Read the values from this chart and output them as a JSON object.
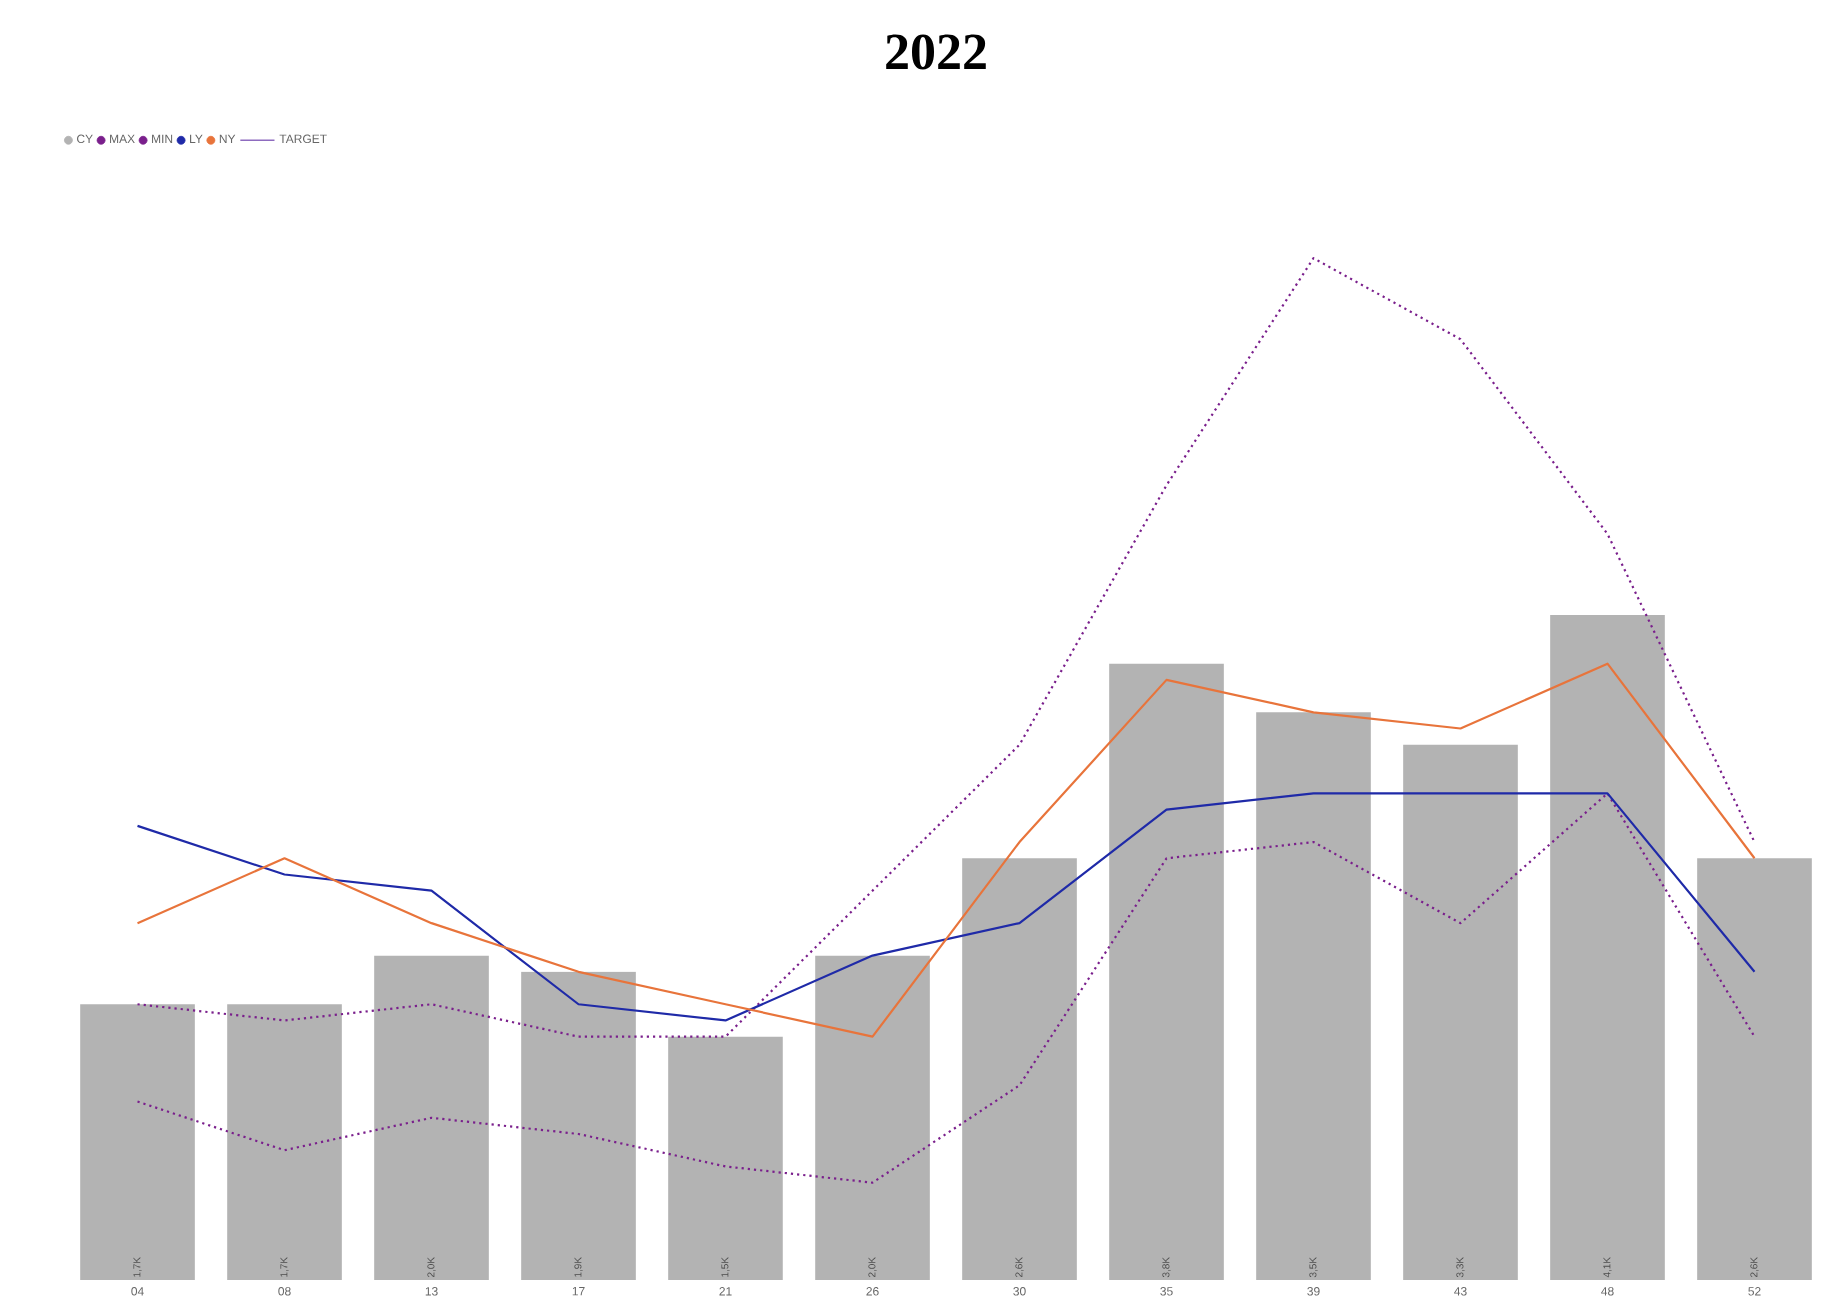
{
  "chart_data": {
    "type": "bar",
    "title": "2022",
    "categories": [
      "04",
      "08",
      "13",
      "17",
      "21",
      "26",
      "30",
      "35",
      "39",
      "43",
      "48",
      "52"
    ],
    "tick_labels": "x",
    "legend": "top left",
    "grid": false,
    "marker": "none",
    "series": [
      {
        "name": "CY",
        "color": "#b3b3b3",
        "values": [
          1.7,
          1.7,
          2.0,
          1.9,
          1.5,
          2.0,
          2.6,
          3.8,
          3.5,
          3.3,
          4.1,
          2.6
        ],
        "value_labels": [
          "1,7K",
          "1,7K",
          "2,0K",
          "1,9K",
          "1,5K",
          "2,0K",
          "2,6K",
          "3,8K",
          "3,5K",
          "3,3K",
          "4,1K",
          "2,6K"
        ]
      },
      {
        "name": "MAX",
        "type": "line",
        "color": "#7a1f8c",
        "line_style": "dotted",
        "values": [
          1.7,
          1.6,
          1.7,
          1.5,
          1.5,
          2.4,
          3.3,
          4.9,
          6.3,
          5.8,
          4.6,
          2.7
        ]
      },
      {
        "name": "MIN",
        "type": "line",
        "color": "#7a1f8c",
        "line_style": "dotted",
        "values": [
          1.1,
          0.8,
          1.0,
          0.9,
          0.7,
          0.6,
          1.2,
          2.6,
          2.7,
          2.2,
          3.0,
          1.5
        ]
      },
      {
        "name": "LY",
        "type": "line",
        "color": "#1f2aa8",
        "line_style": "solid",
        "values": [
          2.8,
          2.5,
          2.4,
          1.7,
          1.6,
          2.0,
          2.2,
          2.9,
          3.0,
          3.0,
          3.0,
          1.9
        ]
      },
      {
        "name": "NY",
        "type": "line",
        "color": "#e8743b",
        "line_style": "solid",
        "values": [
          2.2,
          2.6,
          2.2,
          1.9,
          1.7,
          1.5,
          2.7,
          3.7,
          3.5,
          3.4,
          3.8,
          2.6
        ]
      },
      {
        "name": "TARGET",
        "type": "line",
        "color": "#8e6bbf",
        "line_style": "solid",
        "values": [
          null,
          null,
          null,
          null,
          null,
          null,
          null,
          null,
          null,
          null,
          null,
          null
        ]
      }
    ]
  }
}
